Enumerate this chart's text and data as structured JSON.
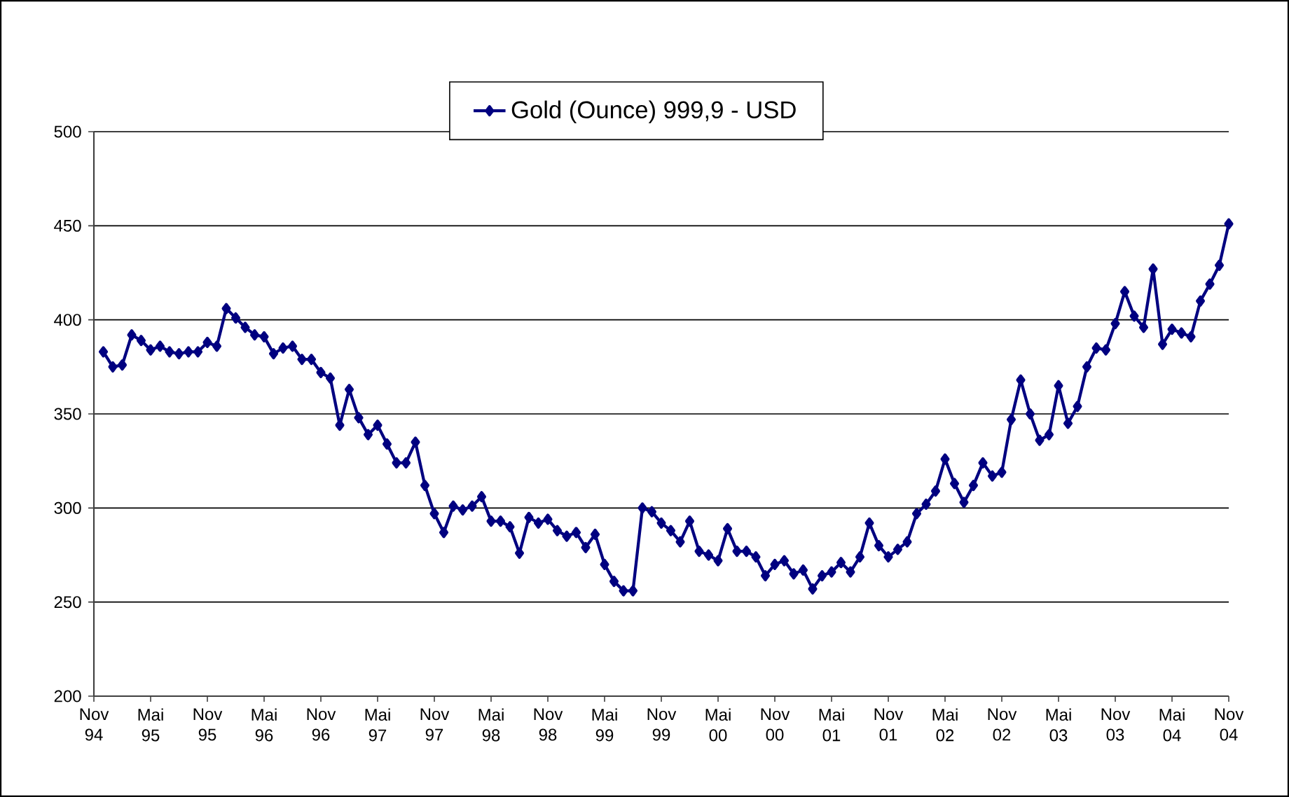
{
  "chart_data": {
    "type": "line",
    "legend": "top",
    "grid": "y",
    "marker": "diamond",
    "line_style": "solid",
    "x": [
      "1994-12",
      "1995-01",
      "1995-02",
      "1995-03",
      "1995-04",
      "1995-05",
      "1995-06",
      "1995-07",
      "1995-08",
      "1995-09",
      "1995-10",
      "1995-11",
      "1995-12",
      "1996-01",
      "1996-02",
      "1996-03",
      "1996-04",
      "1996-05",
      "1996-06",
      "1996-07",
      "1996-08",
      "1996-09",
      "1996-10",
      "1996-11",
      "1996-12",
      "1997-01",
      "1997-02",
      "1997-03",
      "1997-04",
      "1997-05",
      "1997-06",
      "1997-07",
      "1997-08",
      "1997-09",
      "1997-10",
      "1997-11",
      "1997-12",
      "1998-01",
      "1998-02",
      "1998-03",
      "1998-04",
      "1998-05",
      "1998-06",
      "1998-07",
      "1998-08",
      "1998-09",
      "1998-10",
      "1998-11",
      "1998-12",
      "1999-01",
      "1999-02",
      "1999-03",
      "1999-04",
      "1999-05",
      "1999-06",
      "1999-07",
      "1999-08",
      "1999-09",
      "1999-10",
      "1999-11",
      "1999-12",
      "2000-01",
      "2000-02",
      "2000-03",
      "2000-04",
      "2000-05",
      "2000-06",
      "2000-07",
      "2000-08",
      "2000-09",
      "2000-10",
      "2000-11",
      "2000-12",
      "2001-01",
      "2001-02",
      "2001-03",
      "2001-04",
      "2001-05",
      "2001-06",
      "2001-07",
      "2001-08",
      "2001-09",
      "2001-10",
      "2001-11",
      "2001-12",
      "2002-01",
      "2002-02",
      "2002-03",
      "2002-04",
      "2002-05",
      "2002-06",
      "2002-07",
      "2002-08",
      "2002-09",
      "2002-10",
      "2002-11",
      "2002-12",
      "2003-01",
      "2003-02",
      "2003-03",
      "2003-04",
      "2003-05",
      "2003-06",
      "2003-07",
      "2003-08",
      "2003-09",
      "2003-10",
      "2003-11",
      "2003-12",
      "2004-01",
      "2004-02",
      "2004-03",
      "2004-04",
      "2004-05",
      "2004-06",
      "2004-07",
      "2004-08",
      "2004-09",
      "2004-10",
      "2004-11"
    ],
    "series": [
      {
        "name": "Gold (Ounce) 999,9 - USD",
        "color": "#000080",
        "values": [
          383,
          375,
          376,
          392,
          389,
          384,
          386,
          383,
          382,
          383,
          383,
          388,
          386,
          406,
          401,
          396,
          392,
          391,
          382,
          385,
          386,
          379,
          379,
          372,
          369,
          344,
          363,
          348,
          339,
          344,
          334,
          324,
          324,
          335,
          312,
          297,
          287,
          301,
          299,
          301,
          306,
          293,
          293,
          290,
          276,
          295,
          292,
          294,
          288,
          285,
          287,
          279,
          286,
          270,
          261,
          256,
          256,
          300,
          298,
          292,
          288,
          282,
          293,
          277,
          275,
          272,
          289,
          277,
          277,
          274,
          264,
          270,
          272,
          265,
          267,
          257,
          264,
          266,
          271,
          266,
          274,
          292,
          280,
          274,
          278,
          282,
          297,
          302,
          309,
          326,
          313,
          303,
          312,
          324,
          317,
          319,
          347,
          368,
          350,
          336,
          339,
          365,
          345,
          354,
          375,
          385,
          384,
          398,
          415,
          402,
          396,
          427,
          387,
          395,
          393,
          391,
          410,
          419,
          429,
          451
        ]
      }
    ],
    "xlim": [
      "1994-11",
      "2004-11"
    ],
    "xticks": [
      {
        "value": "1994-11",
        "label": "Nov 94"
      },
      {
        "value": "1995-05",
        "label": "Mai 95"
      },
      {
        "value": "1995-11",
        "label": "Nov 95"
      },
      {
        "value": "1996-05",
        "label": "Mai 96"
      },
      {
        "value": "1996-11",
        "label": "Nov 96"
      },
      {
        "value": "1997-05",
        "label": "Mai 97"
      },
      {
        "value": "1997-11",
        "label": "Nov 97"
      },
      {
        "value": "1998-05",
        "label": "Mai 98"
      },
      {
        "value": "1998-11",
        "label": "Nov 98"
      },
      {
        "value": "1999-05",
        "label": "Mai 99"
      },
      {
        "value": "1999-11",
        "label": "Nov 99"
      },
      {
        "value": "2000-05",
        "label": "Mai 00"
      },
      {
        "value": "2000-11",
        "label": "Nov 00"
      },
      {
        "value": "2001-05",
        "label": "Mai 01"
      },
      {
        "value": "2001-11",
        "label": "Nov 01"
      },
      {
        "value": "2002-05",
        "label": "Mai 02"
      },
      {
        "value": "2002-11",
        "label": "Nov 02"
      },
      {
        "value": "2003-05",
        "label": "Mai 03"
      },
      {
        "value": "2003-11",
        "label": "Nov 03"
      },
      {
        "value": "2004-05",
        "label": "Mai 04"
      },
      {
        "value": "2004-11",
        "label": "Nov 04"
      }
    ],
    "ylim": [
      200,
      500
    ],
    "yticks": [
      200,
      250,
      300,
      350,
      400,
      450,
      500
    ]
  }
}
